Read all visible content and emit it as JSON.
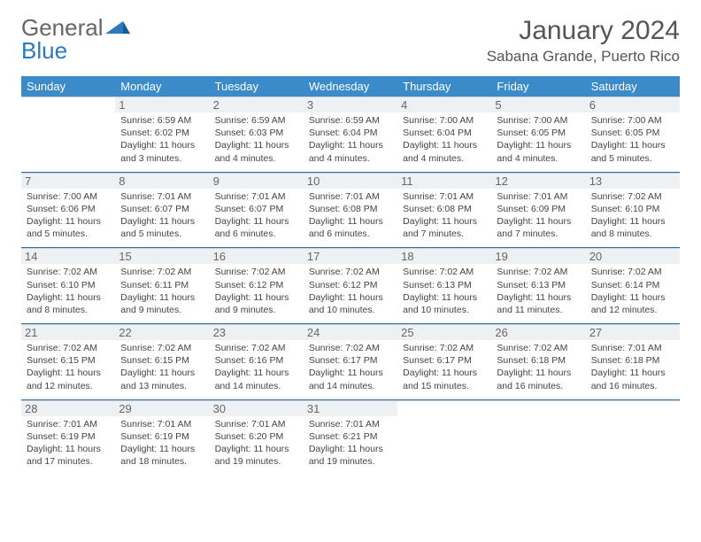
{
  "brand": {
    "text1": "General",
    "text2": "Blue"
  },
  "title": "January 2024",
  "location": "Sabana Grande, Puerto Rico",
  "colors": {
    "header_bg": "#3b8bc9",
    "week_divider": "#2a6fa8",
    "daynum_bg": "#eef1f4",
    "text": "#444",
    "brand_gray": "#666",
    "brand_blue": "#2a7ac0"
  },
  "day_names": [
    "Sunday",
    "Monday",
    "Tuesday",
    "Wednesday",
    "Thursday",
    "Friday",
    "Saturday"
  ],
  "weeks": [
    [
      null,
      {
        "n": "1",
        "sr": "6:59 AM",
        "ss": "6:02 PM",
        "dl": "11 hours and 3 minutes."
      },
      {
        "n": "2",
        "sr": "6:59 AM",
        "ss": "6:03 PM",
        "dl": "11 hours and 4 minutes."
      },
      {
        "n": "3",
        "sr": "6:59 AM",
        "ss": "6:04 PM",
        "dl": "11 hours and 4 minutes."
      },
      {
        "n": "4",
        "sr": "7:00 AM",
        "ss": "6:04 PM",
        "dl": "11 hours and 4 minutes."
      },
      {
        "n": "5",
        "sr": "7:00 AM",
        "ss": "6:05 PM",
        "dl": "11 hours and 4 minutes."
      },
      {
        "n": "6",
        "sr": "7:00 AM",
        "ss": "6:05 PM",
        "dl": "11 hours and 5 minutes."
      }
    ],
    [
      {
        "n": "7",
        "sr": "7:00 AM",
        "ss": "6:06 PM",
        "dl": "11 hours and 5 minutes."
      },
      {
        "n": "8",
        "sr": "7:01 AM",
        "ss": "6:07 PM",
        "dl": "11 hours and 5 minutes."
      },
      {
        "n": "9",
        "sr": "7:01 AM",
        "ss": "6:07 PM",
        "dl": "11 hours and 6 minutes."
      },
      {
        "n": "10",
        "sr": "7:01 AM",
        "ss": "6:08 PM",
        "dl": "11 hours and 6 minutes."
      },
      {
        "n": "11",
        "sr": "7:01 AM",
        "ss": "6:08 PM",
        "dl": "11 hours and 7 minutes."
      },
      {
        "n": "12",
        "sr": "7:01 AM",
        "ss": "6:09 PM",
        "dl": "11 hours and 7 minutes."
      },
      {
        "n": "13",
        "sr": "7:02 AM",
        "ss": "6:10 PM",
        "dl": "11 hours and 8 minutes."
      }
    ],
    [
      {
        "n": "14",
        "sr": "7:02 AM",
        "ss": "6:10 PM",
        "dl": "11 hours and 8 minutes."
      },
      {
        "n": "15",
        "sr": "7:02 AM",
        "ss": "6:11 PM",
        "dl": "11 hours and 9 minutes."
      },
      {
        "n": "16",
        "sr": "7:02 AM",
        "ss": "6:12 PM",
        "dl": "11 hours and 9 minutes."
      },
      {
        "n": "17",
        "sr": "7:02 AM",
        "ss": "6:12 PM",
        "dl": "11 hours and 10 minutes."
      },
      {
        "n": "18",
        "sr": "7:02 AM",
        "ss": "6:13 PM",
        "dl": "11 hours and 10 minutes."
      },
      {
        "n": "19",
        "sr": "7:02 AM",
        "ss": "6:13 PM",
        "dl": "11 hours and 11 minutes."
      },
      {
        "n": "20",
        "sr": "7:02 AM",
        "ss": "6:14 PM",
        "dl": "11 hours and 12 minutes."
      }
    ],
    [
      {
        "n": "21",
        "sr": "7:02 AM",
        "ss": "6:15 PM",
        "dl": "11 hours and 12 minutes."
      },
      {
        "n": "22",
        "sr": "7:02 AM",
        "ss": "6:15 PM",
        "dl": "11 hours and 13 minutes."
      },
      {
        "n": "23",
        "sr": "7:02 AM",
        "ss": "6:16 PM",
        "dl": "11 hours and 14 minutes."
      },
      {
        "n": "24",
        "sr": "7:02 AM",
        "ss": "6:17 PM",
        "dl": "11 hours and 14 minutes."
      },
      {
        "n": "25",
        "sr": "7:02 AM",
        "ss": "6:17 PM",
        "dl": "11 hours and 15 minutes."
      },
      {
        "n": "26",
        "sr": "7:02 AM",
        "ss": "6:18 PM",
        "dl": "11 hours and 16 minutes."
      },
      {
        "n": "27",
        "sr": "7:01 AM",
        "ss": "6:18 PM",
        "dl": "11 hours and 16 minutes."
      }
    ],
    [
      {
        "n": "28",
        "sr": "7:01 AM",
        "ss": "6:19 PM",
        "dl": "11 hours and 17 minutes."
      },
      {
        "n": "29",
        "sr": "7:01 AM",
        "ss": "6:19 PM",
        "dl": "11 hours and 18 minutes."
      },
      {
        "n": "30",
        "sr": "7:01 AM",
        "ss": "6:20 PM",
        "dl": "11 hours and 19 minutes."
      },
      {
        "n": "31",
        "sr": "7:01 AM",
        "ss": "6:21 PM",
        "dl": "11 hours and 19 minutes."
      },
      null,
      null,
      null
    ]
  ],
  "labels": {
    "sunrise": "Sunrise:",
    "sunset": "Sunset:",
    "daylight": "Daylight:"
  }
}
